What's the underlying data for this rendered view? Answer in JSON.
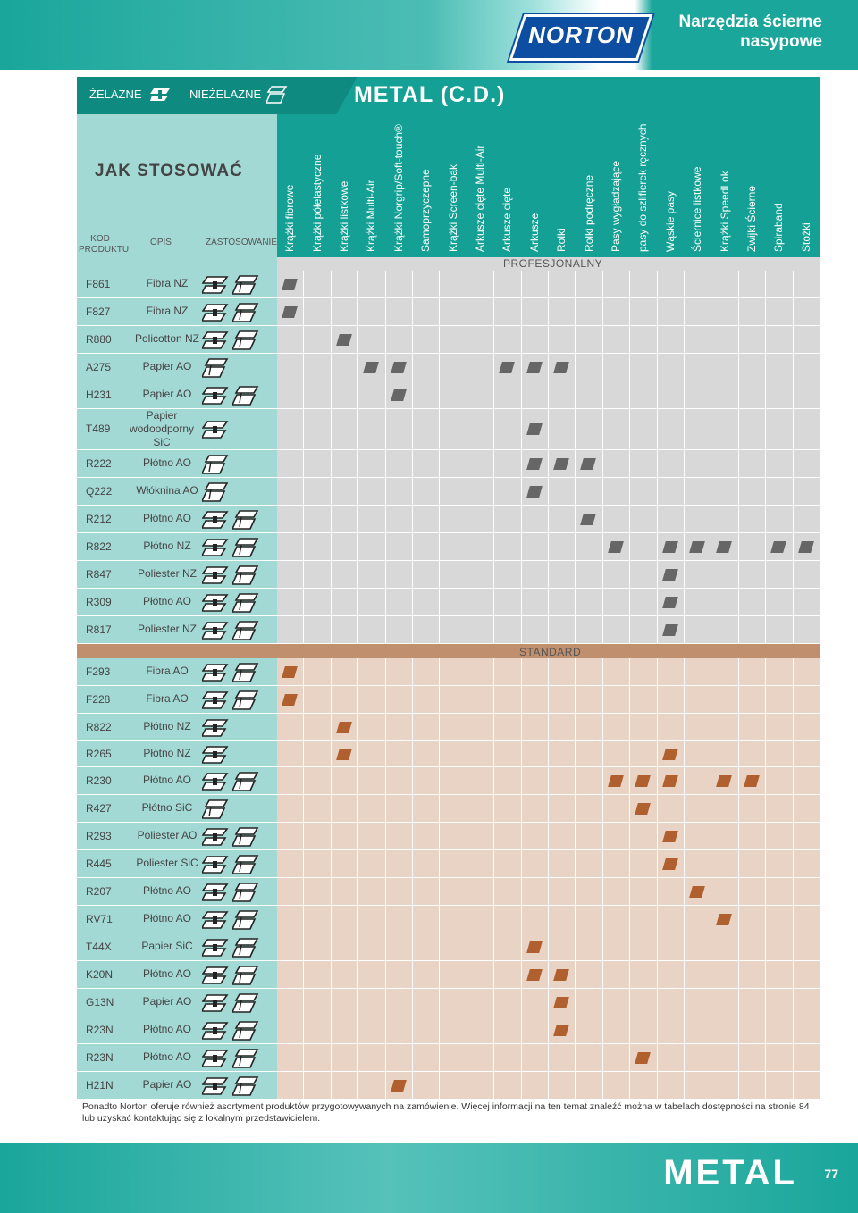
{
  "header": {
    "brand": "NORTON",
    "title": "Narzędzia ścierne nasypowe"
  },
  "section": {
    "left_label": "ŻELAZNE",
    "right_label": "NIEŻELAZNE",
    "title": "METAL (C.D.)",
    "icons": [
      "ferrous-icon",
      "non-ferrous-icon"
    ]
  },
  "left_header": {
    "title": "JAK STOSOWAĆ",
    "col_code": "KOD PRODUKTU",
    "col_desc": "OPIS",
    "col_use": "ZASTOSOWANIE"
  },
  "columns": [
    "Krążki fibrowe",
    "Krążki półelastyczne",
    "Krążki listkowe",
    "Krążki Multi-Air",
    "Krążki Norgrip/Soft-touch®",
    "Samoprzyczepne",
    "Krążki Screen-bak",
    "Arkusze cięte Multi-Air",
    "Arkusze cięte",
    "Arkusze",
    "Rolki",
    "Rolki podręczne",
    "Pasy wygładzające",
    "pasy do szlifierek ręcznych",
    "Wąskie pasy",
    "Ściernice listkowe",
    "Krążki SpeedLok",
    "Zwijki Ścierne",
    "Spiraband",
    "Stożki"
  ],
  "bands": {
    "professional": "PROFESJONALNY",
    "standard": "STANDARD"
  },
  "colors": {
    "teal": "#14a094",
    "teal_light": "#a3d9d5",
    "gray_cell": "#d8d8d8",
    "gray_mark": "#666666",
    "peach_cell": "#e8d3c4",
    "brown_mark": "#b0602e",
    "standard_bar": "#c0906e"
  },
  "rows_professional": [
    {
      "code": "F861",
      "desc": "Fibra NZ",
      "use": [
        "F",
        "N"
      ],
      "marks": [
        0
      ]
    },
    {
      "code": "F827",
      "desc": "Fibra NZ",
      "use": [
        "F",
        "N"
      ],
      "marks": [
        0
      ]
    },
    {
      "code": "R880",
      "desc": "Policotton NZ",
      "use": [
        "F",
        "N"
      ],
      "marks": [
        2
      ]
    },
    {
      "code": "A275",
      "desc": "Papier AO",
      "use": [
        "N"
      ],
      "marks": [
        3,
        4,
        8,
        9,
        10
      ]
    },
    {
      "code": "H231",
      "desc": "Papier AO",
      "use": [
        "F",
        "N"
      ],
      "marks": [
        4
      ]
    },
    {
      "code": "T489",
      "desc": "Papier wodoodporny SiC",
      "use": [
        "F"
      ],
      "marks": [
        9
      ]
    },
    {
      "code": "R222",
      "desc": "Płótno AO",
      "use": [
        "N"
      ],
      "marks": [
        9,
        10,
        11
      ]
    },
    {
      "code": "Q222",
      "desc": "Włóknina AO",
      "use": [
        "N"
      ],
      "marks": [
        9
      ]
    },
    {
      "code": "R212",
      "desc": "Płótno AO",
      "use": [
        "F",
        "N"
      ],
      "marks": [
        11
      ]
    },
    {
      "code": "R822",
      "desc": "Płótno  NZ",
      "use": [
        "F",
        "N"
      ],
      "marks": [
        12,
        14,
        15,
        16,
        18,
        19
      ]
    },
    {
      "code": "R847",
      "desc": "Poliester NZ",
      "use": [
        "F",
        "N"
      ],
      "marks": [
        14
      ]
    },
    {
      "code": "R309",
      "desc": "Płótno  AO",
      "use": [
        "F",
        "N"
      ],
      "marks": [
        14
      ]
    },
    {
      "code": "R817",
      "desc": "Poliester NZ",
      "use": [
        "F",
        "N"
      ],
      "marks": [
        14
      ]
    }
  ],
  "rows_standard": [
    {
      "code": "F293",
      "desc": "Fibra AO",
      "use": [
        "F",
        "N"
      ],
      "marks": [
        0
      ]
    },
    {
      "code": "F228",
      "desc": "Fibra AO",
      "use": [
        "F",
        "N"
      ],
      "marks": [
        0
      ]
    },
    {
      "code": "R822",
      "desc": "Płótno  NZ",
      "use": [
        "F"
      ],
      "marks": [
        2
      ]
    },
    {
      "code": "R265",
      "desc": "Płótno  NZ",
      "use": [
        "F"
      ],
      "marks": [
        2,
        14
      ]
    },
    {
      "code": "R230",
      "desc": "Płótno  AO",
      "use": [
        "F",
        "N"
      ],
      "marks": [
        12,
        13,
        14,
        16,
        17
      ]
    },
    {
      "code": "R427",
      "desc": "Płótno  SiC",
      "use": [
        "N"
      ],
      "marks": [
        13
      ]
    },
    {
      "code": "R293",
      "desc": "Poliester AO",
      "use": [
        "F",
        "N"
      ],
      "marks": [
        14
      ]
    },
    {
      "code": "R445",
      "desc": "Poliester SiC",
      "use": [
        "F",
        "N"
      ],
      "marks": [
        14
      ]
    },
    {
      "code": "R207",
      "desc": "Płótno  AO",
      "use": [
        "F",
        "N"
      ],
      "marks": [
        15
      ]
    },
    {
      "code": "RV71",
      "desc": "Płótno  AO",
      "use": [
        "F",
        "N"
      ],
      "marks": [
        16
      ]
    },
    {
      "code": "T44X",
      "desc": "Papier SiC",
      "use": [
        "F",
        "N"
      ],
      "marks": [
        9
      ]
    },
    {
      "code": "K20N",
      "desc": "Płótno  AO",
      "use": [
        "F",
        "N"
      ],
      "marks": [
        9,
        10
      ]
    },
    {
      "code": "G13N",
      "desc": "Papier  AO",
      "use": [
        "F",
        "N"
      ],
      "marks": [
        10
      ]
    },
    {
      "code": "R23N",
      "desc": "Płótno  AO",
      "use": [
        "F",
        "N"
      ],
      "marks": [
        10
      ]
    },
    {
      "code": "R23N",
      "desc": "Płótno  AO",
      "use": [
        "F",
        "N"
      ],
      "marks": [
        13
      ]
    },
    {
      "code": "H21N",
      "desc": "Papier AO",
      "use": [
        "F",
        "N"
      ],
      "marks": [
        4
      ]
    }
  ],
  "footer_note": "Ponadto Norton oferuje również asortyment produktów przygotowywanych na zamówienie. Więcej informacji na ten temat znaleźć można w tabelach dostępności na stronie 84 lub uzyskać kontaktując się z lokalnym przedstawicielem.",
  "footer": {
    "section": "METAL",
    "page": "77"
  }
}
